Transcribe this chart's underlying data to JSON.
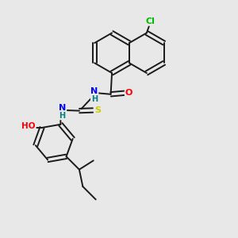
{
  "background_color": "#e8e8e8",
  "bond_color": "#1a1a1a",
  "atom_colors": {
    "Cl": "#00bb00",
    "O": "#ff0000",
    "N": "#0000ff",
    "S": "#cccc00",
    "H": "#008080"
  },
  "figsize": [
    3.0,
    3.0
  ],
  "dpi": 100
}
